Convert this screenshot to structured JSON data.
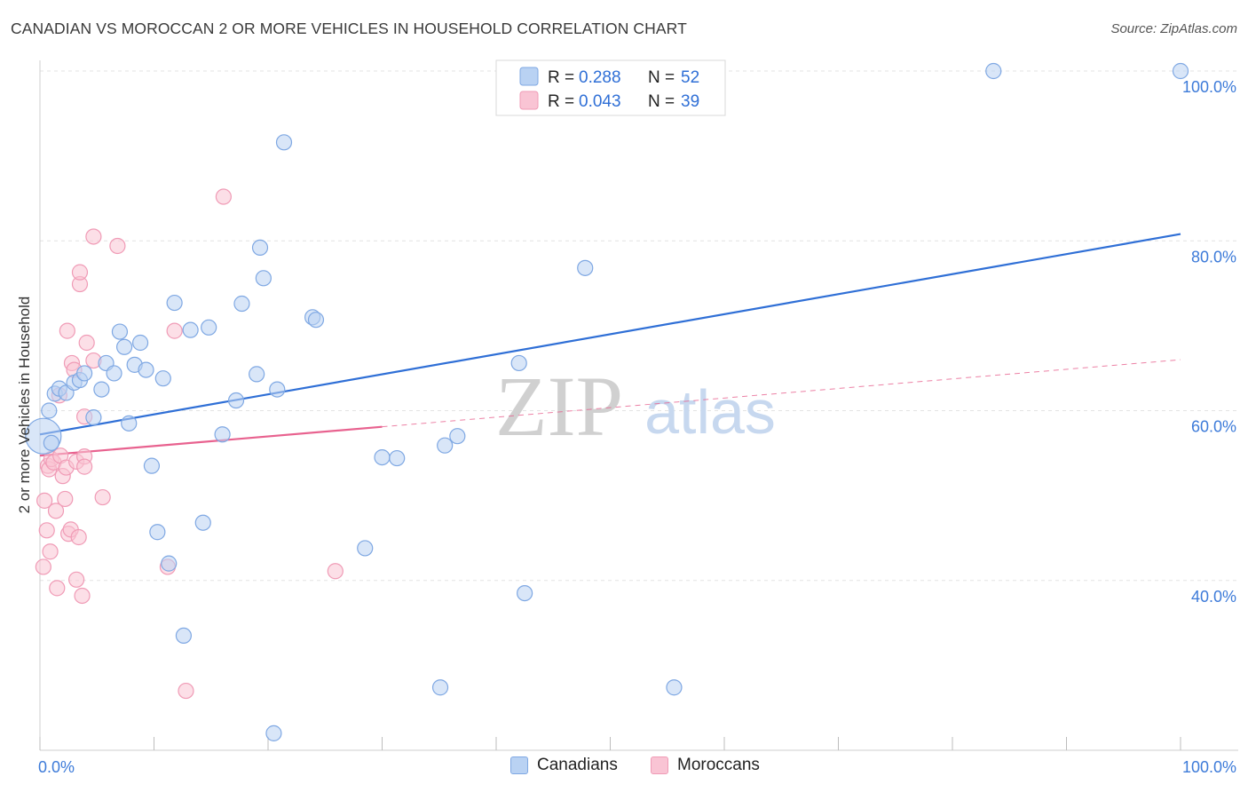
{
  "header": {
    "title": "CANADIAN VS MOROCCAN 2 OR MORE VEHICLES IN HOUSEHOLD CORRELATION CHART",
    "source": "Source: ZipAtlas.com"
  },
  "watermark": {
    "zip": "ZIP",
    "atlas": "atlas"
  },
  "colors": {
    "canadian_fill": "#b9d2f3",
    "canadian_stroke": "#7fa8e3",
    "canadian_line": "#2f6fd6",
    "moroccan_fill": "#f9c4d4",
    "moroccan_stroke": "#f09bb6",
    "moroccan_line": "#e8628f",
    "tick_label": "#3d7bd9"
  },
  "stats_legend": {
    "rows": [
      {
        "r_label": "R =",
        "r_value": "0.288",
        "n_label": "N =",
        "n_value": "52"
      },
      {
        "r_label": "R =",
        "r_value": "0.043",
        "n_label": "N =",
        "n_value": "39"
      }
    ]
  },
  "bottom_legend": {
    "items": [
      "Canadians",
      "Moroccans"
    ]
  },
  "chart_data": {
    "type": "scatter",
    "title": "CANADIAN VS MOROCCAN 2 OR MORE VEHICLES IN HOUSEHOLD CORRELATION CHART",
    "xlabel": "",
    "ylabel": "2 or more Vehicles in Household",
    "x_tick_labels": [
      "0.0%",
      "100.0%"
    ],
    "y_tick_labels": [
      "40.0%",
      "60.0%",
      "80.0%",
      "100.0%"
    ],
    "y_ticks": [
      40,
      60,
      80,
      100
    ],
    "xlim": [
      0,
      100
    ],
    "ylim": [
      20,
      102
    ],
    "grid": true,
    "series": [
      {
        "name": "Canadians",
        "r": 0.288,
        "n": 52,
        "trend": {
          "x": [
            0,
            100
          ],
          "y": [
            57.2,
            80.8
          ],
          "style": "solid"
        },
        "points": [
          [
            0.3,
            57.0
          ],
          [
            0.8,
            60.0
          ],
          [
            1.3,
            62.0
          ],
          [
            1.7,
            62.6
          ],
          [
            2.3,
            62.1
          ],
          [
            3.0,
            63.3
          ],
          [
            3.5,
            63.6
          ],
          [
            3.9,
            64.4
          ],
          [
            4.7,
            59.2
          ],
          [
            5.4,
            62.5
          ],
          [
            5.8,
            65.6
          ],
          [
            6.5,
            64.4
          ],
          [
            7.0,
            69.3
          ],
          [
            7.4,
            67.5
          ],
          [
            7.8,
            58.5
          ],
          [
            8.3,
            65.4
          ],
          [
            8.8,
            68.0
          ],
          [
            9.3,
            64.8
          ],
          [
            9.8,
            53.5
          ],
          [
            10.3,
            45.7
          ],
          [
            10.8,
            63.8
          ],
          [
            11.3,
            42.0
          ],
          [
            11.8,
            72.7
          ],
          [
            12.6,
            33.5
          ],
          [
            13.2,
            69.5
          ],
          [
            14.3,
            46.8
          ],
          [
            14.8,
            69.8
          ],
          [
            16.0,
            57.2
          ],
          [
            17.2,
            61.2
          ],
          [
            17.7,
            72.6
          ],
          [
            19.0,
            64.3
          ],
          [
            19.3,
            79.2
          ],
          [
            19.6,
            75.6
          ],
          [
            20.5,
            22.0
          ],
          [
            20.8,
            62.5
          ],
          [
            21.4,
            91.6
          ],
          [
            23.9,
            71.0
          ],
          [
            24.2,
            70.7
          ],
          [
            28.5,
            43.8
          ],
          [
            30.0,
            54.5
          ],
          [
            31.3,
            54.4
          ],
          [
            35.1,
            27.4
          ],
          [
            35.5,
            55.9
          ],
          [
            36.6,
            57.0
          ],
          [
            42.0,
            65.6
          ],
          [
            42.5,
            38.5
          ],
          [
            47.8,
            76.8
          ],
          [
            55.6,
            27.4
          ],
          [
            56.4,
            100.0
          ],
          [
            83.6,
            100.0
          ],
          [
            100.0,
            100.0
          ],
          [
            1.0,
            56.2
          ]
        ]
      },
      {
        "name": "Moroccans",
        "r": 0.043,
        "n": 39,
        "trend": {
          "x": [
            0,
            30
          ],
          "y": [
            54.7,
            58.1
          ],
          "style": "solid",
          "extend_to": 100,
          "extend_y": 66.0,
          "extend_style": "dashed"
        },
        "points": [
          [
            0.3,
            41.6
          ],
          [
            0.4,
            49.4
          ],
          [
            0.6,
            45.9
          ],
          [
            0.7,
            53.5
          ],
          [
            0.8,
            53.1
          ],
          [
            0.9,
            43.4
          ],
          [
            1.0,
            54.3
          ],
          [
            1.2,
            53.9
          ],
          [
            1.4,
            48.2
          ],
          [
            1.5,
            39.1
          ],
          [
            1.7,
            61.8
          ],
          [
            1.8,
            54.7
          ],
          [
            2.0,
            52.3
          ],
          [
            2.2,
            49.6
          ],
          [
            2.3,
            53.3
          ],
          [
            2.4,
            69.4
          ],
          [
            2.5,
            45.5
          ],
          [
            2.7,
            46.0
          ],
          [
            2.8,
            65.6
          ],
          [
            3.0,
            64.8
          ],
          [
            3.2,
            54.0
          ],
          [
            3.2,
            40.1
          ],
          [
            3.4,
            45.1
          ],
          [
            3.5,
            74.9
          ],
          [
            3.5,
            76.3
          ],
          [
            3.7,
            38.2
          ],
          [
            3.9,
            59.3
          ],
          [
            3.9,
            54.6
          ],
          [
            3.9,
            53.4
          ],
          [
            4.1,
            68.0
          ],
          [
            4.7,
            65.9
          ],
          [
            4.7,
            80.5
          ],
          [
            5.5,
            49.8
          ],
          [
            6.8,
            79.4
          ],
          [
            11.2,
            41.6
          ],
          [
            11.8,
            69.4
          ],
          [
            12.8,
            27.0
          ],
          [
            16.1,
            85.2
          ],
          [
            25.9,
            41.1
          ]
        ]
      }
    ]
  }
}
